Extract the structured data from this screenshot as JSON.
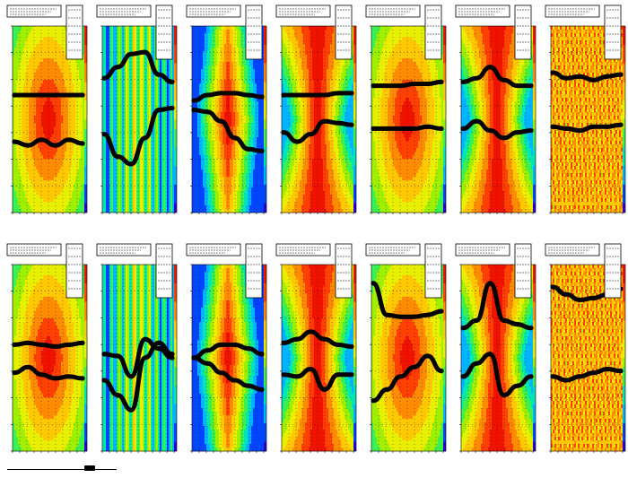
{
  "layout": {
    "rows": 2,
    "cols": 7
  },
  "colors": {
    "palette": [
      "#2a00d6",
      "#0046ff",
      "#00b4ff",
      "#00e6b4",
      "#3cf050",
      "#9ef000",
      "#e8f000",
      "#ffc800",
      "#ff8c00",
      "#ff4000",
      "#f01400"
    ],
    "marker": "#000000",
    "frame": "#000000",
    "grid": "#000000",
    "background": "#ffffff"
  },
  "chart_data": [
    {
      "type": "heatmap",
      "title": "",
      "xlabel": "",
      "ylabel": "",
      "pattern": "center-hot",
      "series": [
        {
          "type": "line",
          "y": [
            0.63,
            0.63,
            0.63,
            0.63,
            0.63,
            0.63
          ]
        },
        {
          "type": "line",
          "y": [
            0.38,
            0.36,
            0.39,
            0.36,
            0.39,
            0.37
          ]
        }
      ]
    },
    {
      "type": "heatmap",
      "title": "",
      "xlabel": "",
      "ylabel": "",
      "pattern": "striped-center",
      "series": [
        {
          "type": "line",
          "y": [
            0.72,
            0.78,
            0.85,
            0.86,
            0.74,
            0.7
          ]
        },
        {
          "type": "line",
          "y": [
            0.42,
            0.3,
            0.26,
            0.4,
            0.55,
            0.56
          ]
        }
      ]
    },
    {
      "type": "heatmap",
      "title": "",
      "xlabel": "",
      "ylabel": "",
      "pattern": "column-cold-edges",
      "series": [
        {
          "type": "line",
          "y": [
            0.6,
            0.63,
            0.64,
            0.64,
            0.63,
            0.62
          ]
        },
        {
          "type": "line",
          "y": [
            0.55,
            0.54,
            0.49,
            0.4,
            0.34,
            0.33
          ]
        }
      ]
    },
    {
      "type": "heatmap",
      "title": "",
      "xlabel": "",
      "ylabel": "",
      "pattern": "hourglass",
      "series": [
        {
          "type": "line",
          "y": [
            0.63,
            0.63,
            0.63,
            0.63,
            0.64,
            0.64
          ]
        },
        {
          "type": "line",
          "y": [
            0.43,
            0.38,
            0.42,
            0.49,
            0.48,
            0.47
          ]
        }
      ]
    },
    {
      "type": "heatmap",
      "title": "",
      "xlabel": "",
      "ylabel": "",
      "pattern": "center-hot",
      "series": [
        {
          "type": "line",
          "y": [
            0.68,
            0.68,
            0.68,
            0.69,
            0.69,
            0.7
          ]
        },
        {
          "type": "line",
          "y": [
            0.45,
            0.45,
            0.45,
            0.45,
            0.46,
            0.45
          ]
        }
      ]
    },
    {
      "type": "heatmap",
      "title": "",
      "xlabel": "",
      "ylabel": "",
      "pattern": "hourglass",
      "series": [
        {
          "type": "line",
          "y": [
            0.7,
            0.72,
            0.78,
            0.71,
            0.68,
            0.68
          ]
        },
        {
          "type": "line",
          "y": [
            0.45,
            0.49,
            0.44,
            0.4,
            0.43,
            0.44
          ]
        }
      ]
    },
    {
      "type": "heatmap",
      "title": "",
      "xlabel": "",
      "ylabel": "",
      "pattern": "noisy-hot",
      "series": [
        {
          "type": "line",
          "y": [
            0.75,
            0.72,
            0.73,
            0.71,
            0.73,
            0.74
          ]
        },
        {
          "type": "line",
          "y": [
            0.46,
            0.45,
            0.44,
            0.46,
            0.46,
            0.47
          ]
        }
      ]
    },
    {
      "type": "heatmap",
      "title": "",
      "xlabel": "",
      "ylabel": "",
      "pattern": "center-hot",
      "series": [
        {
          "type": "line",
          "y": [
            0.57,
            0.58,
            0.57,
            0.56,
            0.57,
            0.58
          ]
        },
        {
          "type": "line",
          "y": [
            0.42,
            0.45,
            0.41,
            0.39,
            0.4,
            0.39
          ]
        }
      ]
    },
    {
      "type": "heatmap",
      "title": "",
      "xlabel": "",
      "ylabel": "",
      "pattern": "striped-center",
      "series": [
        {
          "type": "line",
          "y": [
            0.52,
            0.51,
            0.4,
            0.6,
            0.55,
            0.5
          ]
        },
        {
          "type": "line",
          "y": [
            0.38,
            0.3,
            0.22,
            0.5,
            0.58,
            0.52
          ]
        }
      ]
    },
    {
      "type": "heatmap",
      "title": "",
      "xlabel": "",
      "ylabel": "",
      "pattern": "column-cold-edges",
      "series": [
        {
          "type": "line",
          "y": [
            0.5,
            0.54,
            0.57,
            0.57,
            0.55,
            0.52
          ]
        },
        {
          "type": "line",
          "y": [
            0.5,
            0.47,
            0.42,
            0.38,
            0.35,
            0.33
          ]
        }
      ]
    },
    {
      "type": "heatmap",
      "title": "",
      "xlabel": "",
      "ylabel": "",
      "pattern": "hourglass",
      "series": [
        {
          "type": "line",
          "y": [
            0.58,
            0.6,
            0.64,
            0.6,
            0.57,
            0.56
          ]
        },
        {
          "type": "line",
          "y": [
            0.41,
            0.4,
            0.44,
            0.33,
            0.41,
            0.41
          ]
        }
      ]
    },
    {
      "type": "heatmap",
      "title": "",
      "xlabel": "",
      "ylabel": "",
      "pattern": "center-hot",
      "series": [
        {
          "type": "line",
          "y": [
            0.9,
            0.73,
            0.72,
            0.72,
            0.73,
            0.75
          ]
        },
        {
          "type": "line",
          "y": [
            0.27,
            0.33,
            0.4,
            0.45,
            0.51,
            0.43
          ]
        }
      ]
    },
    {
      "type": "heatmap",
      "title": "",
      "xlabel": "",
      "ylabel": "",
      "pattern": "hourglass",
      "series": [
        {
          "type": "line",
          "y": [
            0.66,
            0.7,
            0.9,
            0.7,
            0.68,
            0.66
          ]
        },
        {
          "type": "line",
          "y": [
            0.4,
            0.47,
            0.52,
            0.3,
            0.35,
            0.4
          ]
        }
      ]
    },
    {
      "type": "heatmap",
      "title": "",
      "xlabel": "",
      "ylabel": "",
      "pattern": "noisy-hot",
      "series": [
        {
          "type": "line",
          "y": [
            0.88,
            0.84,
            0.81,
            0.82,
            0.84,
            0.87
          ]
        },
        {
          "type": "line",
          "y": [
            0.4,
            0.38,
            0.4,
            0.42,
            0.44,
            0.43
          ]
        }
      ]
    }
  ]
}
